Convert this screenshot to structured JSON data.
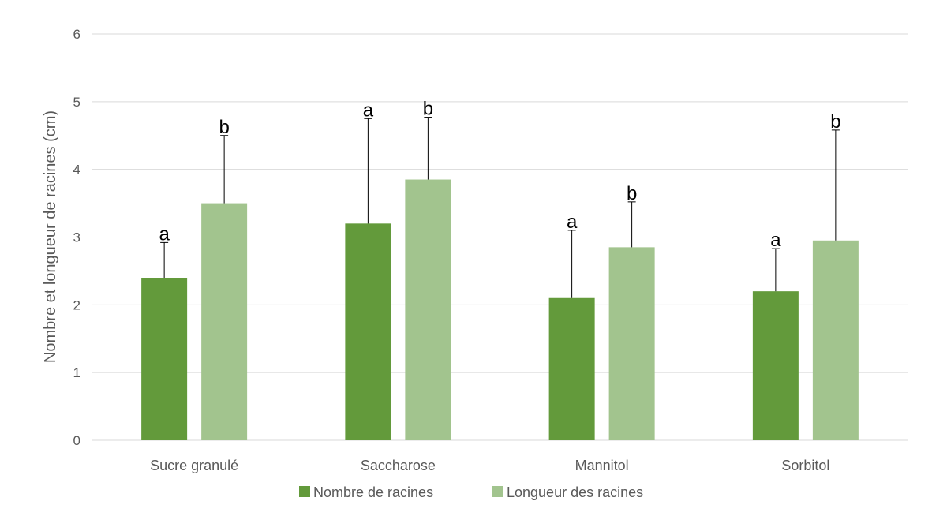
{
  "chart_data": {
    "type": "bar",
    "title": "",
    "xlabel": "",
    "ylabel": "Nombre et longueur de racines (cm)",
    "ylim": [
      0,
      6
    ],
    "yticks": [
      "0",
      "1",
      "2",
      "3",
      "4",
      "5",
      "6"
    ],
    "grid": true,
    "legend_position": "bottom",
    "categories": [
      "Sucre granulé",
      "Saccharose",
      "Mannitol",
      "Sorbitol"
    ],
    "series": [
      {
        "name": "Nombre de racines",
        "color": "#639a3b",
        "values": [
          2.4,
          3.2,
          2.1,
          2.2
        ],
        "error_upper": [
          0.52,
          1.55,
          1.0,
          0.63
        ],
        "labels": [
          "a",
          "a",
          "a",
          "a"
        ]
      },
      {
        "name": "Longueur des racines",
        "color": "#a2c48e",
        "values": [
          3.5,
          3.85,
          2.85,
          2.95
        ],
        "error_upper": [
          1.0,
          0.92,
          0.67,
          1.63
        ],
        "labels": [
          "b",
          "b",
          "b",
          "b"
        ]
      }
    ]
  }
}
